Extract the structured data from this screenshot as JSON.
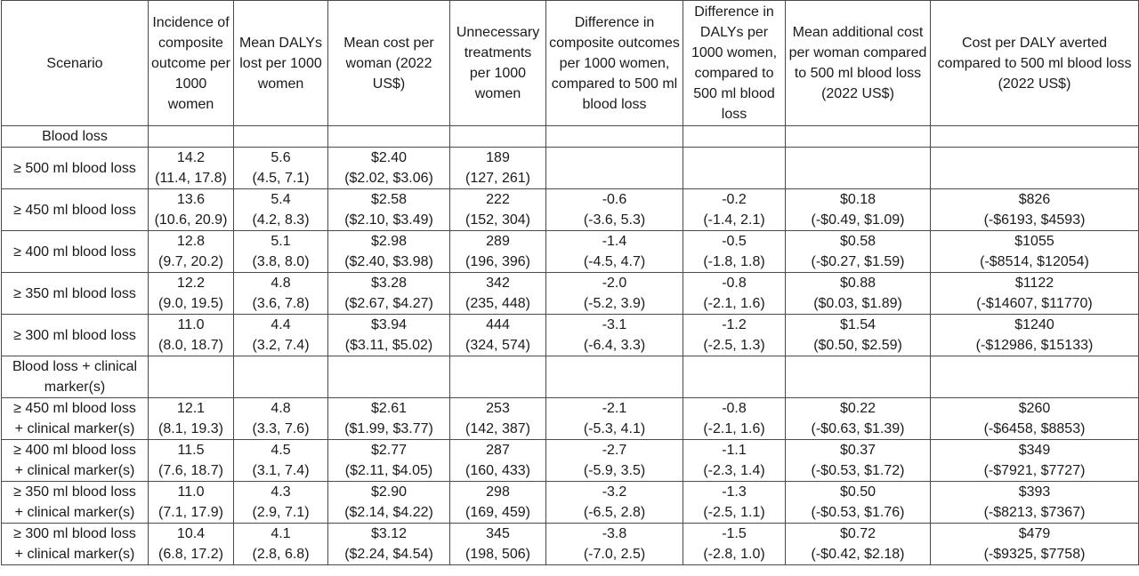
{
  "headers": [
    "Scenario",
    "Incidence of composite outcome per 1000 women",
    "Mean DALYs lost per 1000 women",
    "Mean cost per woman (2022 US$)",
    "Unnecessary treatments per 1000 women",
    "Difference in composite outcomes per 1000 women, compared to 500 ml blood loss",
    "Difference in DALYs per 1000 women, compared to 500 ml blood loss",
    "Mean additional cost per woman compared to 500 ml blood loss (2022 US$)",
    "Cost per DALY averted compared to 500 ml blood loss (2022 US$)"
  ],
  "sections": [
    {
      "title": "Blood loss",
      "rows": [
        {
          "scenario": [
            "≥ 500 ml blood loss"
          ],
          "cells": [
            [
              "14.2",
              "(11.4, 17.8)"
            ],
            [
              "5.6",
              "(4.5, 7.1)"
            ],
            [
              "$2.40",
              "($2.02, $3.06)"
            ],
            [
              "189",
              "(127, 261)"
            ],
            [],
            [],
            [],
            []
          ]
        },
        {
          "scenario": [
            "≥ 450 ml blood loss"
          ],
          "cells": [
            [
              "13.6",
              "(10.6, 20.9)"
            ],
            [
              "5.4",
              "(4.2, 8.3)"
            ],
            [
              "$2.58",
              "($2.10, $3.49)"
            ],
            [
              "222",
              "(152, 304)"
            ],
            [
              "-0.6",
              "(-3.6, 5.3)"
            ],
            [
              "-0.2",
              "(-1.4, 2.1)"
            ],
            [
              "$0.18",
              "(-$0.49, $1.09)"
            ],
            [
              "$826",
              "(-$6193, $4593)"
            ]
          ]
        },
        {
          "scenario": [
            "≥ 400 ml blood loss"
          ],
          "cells": [
            [
              "12.8",
              "(9.7, 20.2)"
            ],
            [
              "5.1",
              "(3.8, 8.0)"
            ],
            [
              "$2.98",
              "($2.40, $3.98)"
            ],
            [
              "289",
              "(196, 396)"
            ],
            [
              "-1.4",
              "(-4.5, 4.7)"
            ],
            [
              "-0.5",
              "(-1.8, 1.8)"
            ],
            [
              "$0.58",
              "(-$0.27, $1.59)"
            ],
            [
              "$1055",
              "(-$8514, $12054)"
            ]
          ]
        },
        {
          "scenario": [
            "≥ 350 ml blood loss"
          ],
          "cells": [
            [
              "12.2",
              "(9.0, 19.5)"
            ],
            [
              "4.8",
              "(3.6, 7.8)"
            ],
            [
              "$3.28",
              "($2.67, $4.27)"
            ],
            [
              "342",
              "(235, 448)"
            ],
            [
              "-2.0",
              "(-5.2, 3.9)"
            ],
            [
              "-0.8",
              "(-2.1, 1.6)"
            ],
            [
              "$0.88",
              "($0.03, $1.89)"
            ],
            [
              "$1122",
              "(-$14607, $11770)"
            ]
          ]
        },
        {
          "scenario": [
            "≥ 300 ml blood loss"
          ],
          "cells": [
            [
              "11.0",
              "(8.0, 18.7)"
            ],
            [
              "4.4",
              "(3.2, 7.4)"
            ],
            [
              "$3.94",
              "($3.11, $5.02)"
            ],
            [
              "444",
              "(324, 574)"
            ],
            [
              "-3.1",
              "(-6.4, 3.3)"
            ],
            [
              "-1.2",
              "(-2.5, 1.3)"
            ],
            [
              "$1.54",
              "($0.50, $2.59)"
            ],
            [
              "$1240",
              "(-$12986, $15133)"
            ]
          ]
        }
      ]
    },
    {
      "title": "Blood loss + clinical marker(s)",
      "rows": [
        {
          "scenario": [
            "≥ 450 ml blood loss",
            "+ clinical marker(s)"
          ],
          "cells": [
            [
              "12.1",
              "(8.1, 19.3)"
            ],
            [
              "4.8",
              "(3.3, 7.6)"
            ],
            [
              "$2.61",
              "($1.99, $3.77)"
            ],
            [
              "253",
              "(142, 387)"
            ],
            [
              "-2.1",
              "(-5.3, 4.1)"
            ],
            [
              "-0.8",
              "(-2.1, 1.6)"
            ],
            [
              "$0.22",
              "(-$0.63, $1.39)"
            ],
            [
              "$260",
              "(-$6458, $8853)"
            ]
          ]
        },
        {
          "scenario": [
            "≥ 400 ml blood loss",
            "+ clinical marker(s)"
          ],
          "cells": [
            [
              "11.5",
              "(7.6, 18.7)"
            ],
            [
              "4.5",
              "(3.1, 7.4)"
            ],
            [
              "$2.77",
              "($2.11, $4.05)"
            ],
            [
              "287",
              "(160, 433)"
            ],
            [
              "-2.7",
              "(-5.9, 3.5)"
            ],
            [
              "-1.1",
              "(-2.3, 1.4)"
            ],
            [
              "$0.37",
              "(-$0.53, $1.72)"
            ],
            [
              "$349",
              "(-$7921, $7727)"
            ]
          ]
        },
        {
          "scenario": [
            "≥ 350 ml blood loss",
            "+ clinical marker(s)"
          ],
          "cells": [
            [
              "11.0",
              "(7.1, 17.9)"
            ],
            [
              "4.3",
              "(2.9, 7.1)"
            ],
            [
              "$2.90",
              "($2.14, $4.22)"
            ],
            [
              "298",
              "(169, 459)"
            ],
            [
              "-3.2",
              "(-6.5, 2.8)"
            ],
            [
              "-1.3",
              "(-2.5, 1.1)"
            ],
            [
              "$0.50",
              "(-$0.53, $1.76)"
            ],
            [
              "$393",
              "(-$8213, $7367)"
            ]
          ]
        },
        {
          "scenario": [
            "≥ 300 ml blood loss",
            "+ clinical marker(s)"
          ],
          "cells": [
            [
              "10.4",
              "(6.8, 17.2)"
            ],
            [
              "4.1",
              "(2.8, 6.8)"
            ],
            [
              "$3.12",
              "($2.24, $4.54)"
            ],
            [
              "345",
              "(198, 506)"
            ],
            [
              "-3.8",
              "(-7.0, 2.5)"
            ],
            [
              "-1.5",
              "(-2.8, 1.0)"
            ],
            [
              "$0.72",
              "(-$0.42, $2.18)"
            ],
            [
              "$479",
              "(-$9325, $7758)"
            ]
          ]
        }
      ]
    }
  ]
}
